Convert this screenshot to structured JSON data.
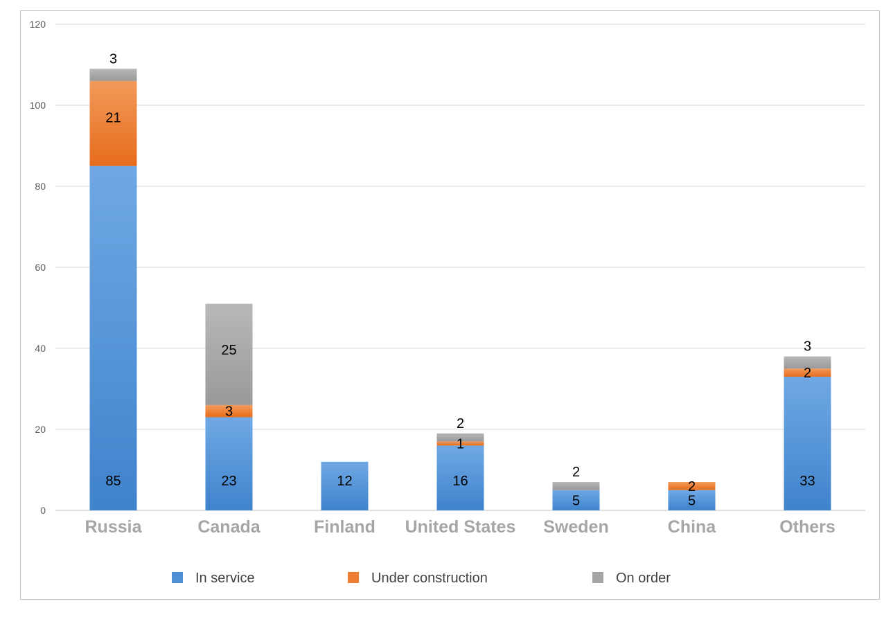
{
  "chart_data": {
    "type": "bar",
    "stacked": true,
    "categories": [
      "Russia",
      "Canada",
      "Finland",
      "United States",
      "Sweden",
      "China",
      "Others"
    ],
    "series": [
      {
        "name": "In service",
        "color": "#4e8fd6",
        "values": [
          85,
          23,
          12,
          16,
          5,
          5,
          33
        ]
      },
      {
        "name": "Under construction",
        "color": "#ed7d31",
        "values": [
          21,
          3,
          0,
          1,
          0,
          2,
          2
        ]
      },
      {
        "name": "On order",
        "color": "#a5a5a5",
        "values": [
          3,
          25,
          0,
          2,
          2,
          0,
          3
        ]
      }
    ],
    "ylim": [
      0,
      120
    ],
    "yticks": [
      0,
      20,
      40,
      60,
      80,
      100,
      120
    ],
    "grid": true,
    "legend_position": "bottom",
    "title": "",
    "xlabel": "",
    "ylabel": ""
  }
}
